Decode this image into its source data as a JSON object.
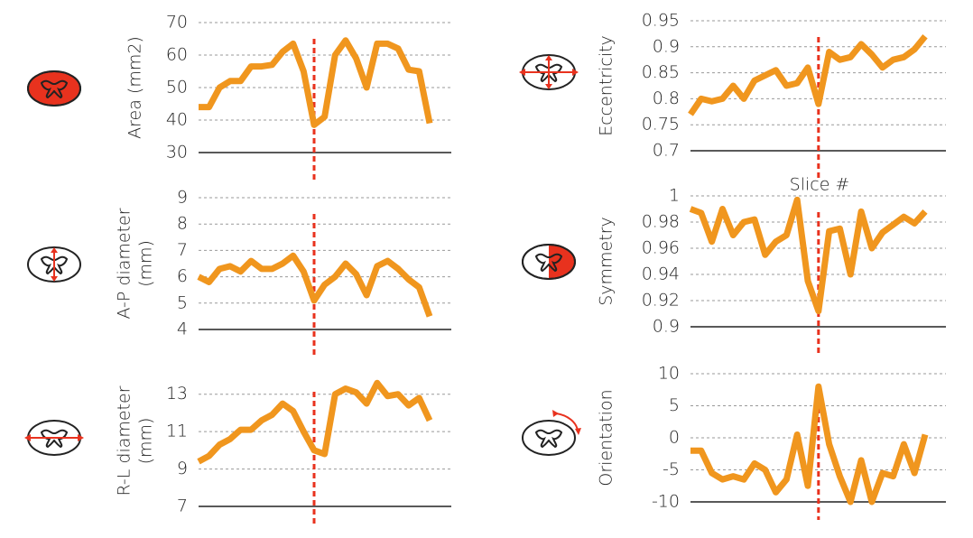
{
  "chart_data": [
    {
      "type": "line",
      "ylabel": [
        "Area (mm2)"
      ],
      "color": "#f0961e",
      "vline_index": 11,
      "vline_color": "#e8321e",
      "grid": true,
      "values": [
        44,
        44,
        50,
        52,
        52,
        56.5,
        56.5,
        57,
        61,
        63.5,
        55,
        38.5,
        41,
        60,
        64.5,
        59,
        50,
        63.5,
        63.5,
        62,
        55.5,
        55,
        39
      ],
      "ylim": [
        30,
        70
      ],
      "yticks": [
        30,
        40,
        50,
        60,
        70
      ]
    },
    {
      "type": "line",
      "ylabel": [
        "A-P diameter",
        "(mm)"
      ],
      "color": "#f0961e",
      "vline_index": 11,
      "vline_color": "#e8321e",
      "grid": true,
      "values": [
        6,
        5.8,
        6.3,
        6.4,
        6.2,
        6.6,
        6.3,
        6.3,
        6.5,
        6.8,
        6.2,
        5.1,
        5.7,
        6,
        6.5,
        6.1,
        5.3,
        6.4,
        6.6,
        6.3,
        5.9,
        5.6,
        4.5
      ],
      "ylim": [
        4,
        9
      ],
      "yticks": [
        4,
        5,
        6,
        7,
        8,
        9
      ]
    },
    {
      "type": "line",
      "ylabel": [
        "R-L diameter",
        "(mm)"
      ],
      "color": "#f0961e",
      "vline_index": 11,
      "vline_color": "#e8321e",
      "grid": true,
      "values": [
        9.4,
        9.7,
        10.3,
        10.6,
        11.1,
        11.1,
        11.6,
        11.9,
        12.5,
        12.1,
        11,
        10,
        9.8,
        13,
        13.3,
        13.1,
        12.5,
        13.6,
        12.9,
        13,
        12.4,
        12.8,
        11.6
      ],
      "ylim": [
        7,
        14
      ],
      "yticks": [
        7,
        9,
        11,
        13
      ]
    },
    {
      "type": "line",
      "ylabel": [
        "Eccentricity"
      ],
      "xlabel": "Slice #",
      "color": "#f0961e",
      "vline_index": 12,
      "vline_color": "#e8321e",
      "grid": true,
      "values": [
        0.77,
        0.8,
        0.795,
        0.8,
        0.825,
        0.8,
        0.835,
        0.845,
        0.855,
        0.825,
        0.83,
        0.86,
        0.79,
        0.89,
        0.875,
        0.88,
        0.905,
        0.885,
        0.86,
        0.875,
        0.88,
        0.895,
        0.92
      ],
      "ylim": [
        0.7,
        0.95
      ],
      "yticks": [
        0.7,
        0.75,
        0.8,
        0.85,
        0.9,
        0.95
      ]
    },
    {
      "type": "line",
      "ylabel": [
        "Symmetry"
      ],
      "color": "#f0961e",
      "vline_index": 12,
      "vline_color": "#e8321e",
      "grid": true,
      "values": [
        0.99,
        0.987,
        0.965,
        0.99,
        0.97,
        0.98,
        0.982,
        0.955,
        0.965,
        0.97,
        0.997,
        0.935,
        0.912,
        0.973,
        0.975,
        0.94,
        0.988,
        0.96,
        0.972,
        0.978,
        0.984,
        0.979,
        0.988
      ],
      "ylim": [
        0.9,
        1
      ],
      "yticks": [
        0.9,
        0.92,
        0.94,
        0.96,
        0.98,
        1
      ]
    },
    {
      "type": "line",
      "ylabel": [
        "Orientation"
      ],
      "color": "#f0961e",
      "vline_index": 12,
      "vline_color": "#e8321e",
      "grid": true,
      "values": [
        -2,
        -2,
        -5.5,
        -6.5,
        -6,
        -6.5,
        -4,
        -5,
        -8.5,
        -6.5,
        0.5,
        -7.5,
        8,
        -1,
        -6,
        -10,
        -3.5,
        -10,
        -5.5,
        -6,
        -1,
        -5.5,
        0.5
      ],
      "ylim": [
        -10,
        10
      ],
      "yticks": [
        -10,
        -5,
        0,
        5,
        10
      ]
    }
  ]
}
